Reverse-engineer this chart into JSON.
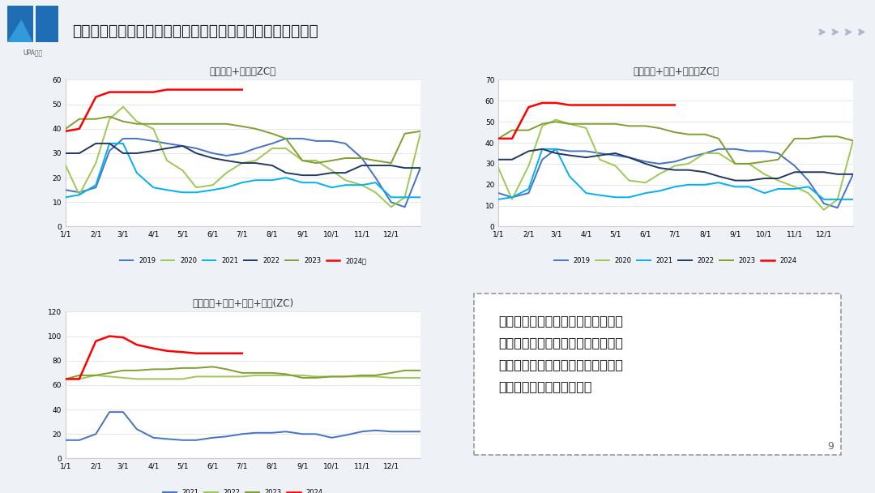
{
  "title": "库存：整体高位小幅下降，未来几周华南及上游料仍去库为主",
  "page_num": "9",
  "bg_color": "#eef2f7",
  "header_bg": "#ffffff",
  "header_bar_color": "#1f6eb5",
  "chart1_title": "库存华东+华南（ZC）",
  "chart2_title": "库存华东+华南+西南（ZC）",
  "chart3_title": "库存华东+华南+西南+上游(ZC)",
  "comment_text": "近期华南库存表现为下降，和洪水导\n致装卸困难有关。未来几周大装置集\n中检修且渤化意外停车，料华南库存\n及上游库存仍以下降为主。",
  "x_labels": [
    "1/1",
    "2/1",
    "3/1",
    "4/1",
    "5/1",
    "6/1",
    "7/1",
    "8/1",
    "9/1",
    "10/1",
    "11/1",
    "12/1"
  ],
  "colors": {
    "2019": "#4472c4",
    "2020": "#9dc853",
    "2021": "#00b0f0",
    "2022": "#1f3864",
    "2023": "#7f9f30",
    "2024": "#ff0000"
  },
  "chart1": {
    "2019_x": [
      1,
      15,
      32,
      46,
      60,
      74,
      91,
      105,
      121,
      135,
      152,
      166,
      182,
      196,
      213,
      227,
      244,
      258,
      274,
      288,
      305,
      319,
      335,
      349,
      365
    ],
    "2019_y": [
      15,
      14,
      16,
      31,
      36,
      36,
      35,
      34,
      33,
      32,
      30,
      29,
      30,
      32,
      34,
      36,
      36,
      35,
      35,
      34,
      28,
      20,
      10,
      8,
      24
    ],
    "2020_x": [
      1,
      15,
      32,
      46,
      60,
      74,
      91,
      105,
      121,
      135,
      152,
      166,
      182,
      196,
      213,
      227,
      244,
      258,
      274,
      288,
      305,
      319,
      335,
      349,
      365
    ],
    "2020_y": [
      25,
      13,
      26,
      44,
      49,
      43,
      40,
      27,
      23,
      16,
      17,
      22,
      26,
      27,
      32,
      32,
      27,
      27,
      23,
      19,
      17,
      14,
      8,
      12,
      38
    ],
    "2021_x": [
      1,
      15,
      32,
      46,
      60,
      74,
      91,
      105,
      121,
      135,
      152,
      166,
      182,
      196,
      213,
      227,
      244,
      258,
      274,
      288,
      305,
      319,
      335,
      349,
      365
    ],
    "2021_y": [
      12,
      13,
      17,
      34,
      34,
      22,
      16,
      15,
      14,
      14,
      15,
      16,
      18,
      19,
      19,
      20,
      18,
      18,
      16,
      17,
      17,
      18,
      12,
      12,
      12
    ],
    "2022_x": [
      1,
      15,
      32,
      46,
      60,
      74,
      91,
      105,
      121,
      135,
      152,
      166,
      182,
      196,
      213,
      227,
      244,
      258,
      274,
      288,
      305,
      319,
      335,
      349,
      365
    ],
    "2022_y": [
      30,
      30,
      34,
      34,
      30,
      30,
      31,
      32,
      33,
      30,
      28,
      27,
      26,
      26,
      25,
      22,
      21,
      21,
      22,
      22,
      25,
      25,
      25,
      24,
      24
    ],
    "2023_x": [
      1,
      15,
      32,
      46,
      60,
      74,
      91,
      105,
      121,
      135,
      152,
      166,
      182,
      196,
      213,
      227,
      244,
      258,
      274,
      288,
      305,
      319,
      335,
      349,
      365
    ],
    "2023_y": [
      40,
      44,
      44,
      45,
      43,
      42,
      42,
      42,
      42,
      42,
      42,
      42,
      41,
      40,
      38,
      36,
      27,
      26,
      27,
      28,
      28,
      27,
      26,
      38,
      39
    ],
    "2024_x": [
      1,
      15,
      32,
      46,
      60,
      74,
      91,
      105,
      121,
      135,
      152,
      166,
      182
    ],
    "2024_y": [
      39,
      40,
      53,
      55,
      55,
      55,
      55,
      56,
      56,
      56,
      56,
      56,
      56
    ]
  },
  "chart2": {
    "2019_x": [
      1,
      15,
      32,
      46,
      60,
      74,
      91,
      105,
      121,
      135,
      152,
      166,
      182,
      196,
      213,
      227,
      244,
      258,
      274,
      288,
      305,
      319,
      335,
      349,
      365
    ],
    "2019_y": [
      16,
      14,
      16,
      32,
      37,
      36,
      36,
      35,
      34,
      33,
      31,
      30,
      31,
      33,
      35,
      37,
      37,
      36,
      36,
      35,
      29,
      22,
      11,
      9,
      25
    ],
    "2020_x": [
      1,
      15,
      32,
      46,
      60,
      74,
      91,
      105,
      121,
      135,
      152,
      166,
      182,
      196,
      213,
      227,
      244,
      258,
      274,
      288,
      305,
      319,
      335,
      349,
      365
    ],
    "2020_y": [
      28,
      13,
      29,
      48,
      51,
      49,
      47,
      32,
      29,
      22,
      21,
      25,
      29,
      30,
      35,
      35,
      30,
      30,
      25,
      22,
      19,
      16,
      8,
      13,
      41
    ],
    "2021_x": [
      1,
      15,
      32,
      46,
      60,
      74,
      91,
      105,
      121,
      135,
      152,
      166,
      182,
      196,
      213,
      227,
      244,
      258,
      274,
      288,
      305,
      319,
      335,
      349,
      365
    ],
    "2021_y": [
      13,
      14,
      18,
      37,
      37,
      24,
      16,
      15,
      14,
      14,
      16,
      17,
      19,
      20,
      20,
      21,
      19,
      19,
      16,
      18,
      18,
      19,
      13,
      13,
      13
    ],
    "2022_x": [
      1,
      15,
      32,
      46,
      60,
      74,
      91,
      105,
      121,
      135,
      152,
      166,
      182,
      196,
      213,
      227,
      244,
      258,
      274,
      288,
      305,
      319,
      335,
      349,
      365
    ],
    "2022_y": [
      32,
      32,
      36,
      37,
      35,
      34,
      33,
      34,
      35,
      33,
      30,
      28,
      27,
      27,
      26,
      24,
      22,
      22,
      23,
      23,
      26,
      26,
      26,
      25,
      25
    ],
    "2023_x": [
      1,
      15,
      32,
      46,
      60,
      74,
      91,
      105,
      121,
      135,
      152,
      166,
      182,
      196,
      213,
      227,
      244,
      258,
      274,
      288,
      305,
      319,
      335,
      349,
      365
    ],
    "2023_y": [
      42,
      46,
      46,
      49,
      50,
      49,
      49,
      49,
      49,
      48,
      48,
      47,
      45,
      44,
      44,
      42,
      30,
      30,
      31,
      32,
      42,
      42,
      43,
      43,
      41
    ],
    "2024_x": [
      1,
      15,
      32,
      46,
      60,
      74,
      91,
      105,
      121,
      135,
      152,
      166,
      182
    ],
    "2024_y": [
      42,
      42,
      57,
      59,
      59,
      58,
      58,
      58,
      58,
      58,
      58,
      58,
      58
    ]
  },
  "chart3": {
    "2021_x": [
      1,
      15,
      32,
      46,
      60,
      74,
      91,
      105,
      121,
      135,
      152,
      166,
      182,
      196,
      213,
      227,
      244,
      258,
      274,
      288,
      305,
      319,
      335,
      349,
      365
    ],
    "2021_y": [
      15,
      15,
      20,
      38,
      38,
      24,
      17,
      16,
      15,
      15,
      17,
      18,
      20,
      21,
      21,
      22,
      20,
      20,
      17,
      19,
      22,
      23,
      22,
      22,
      22
    ],
    "2022_x": [
      1,
      15,
      32,
      46,
      60,
      74,
      91,
      105,
      121,
      135,
      152,
      166,
      182,
      196,
      213,
      227,
      244,
      258,
      274,
      288,
      305,
      319,
      335,
      349,
      365
    ],
    "2022_y": [
      65,
      65,
      68,
      67,
      66,
      65,
      65,
      65,
      65,
      67,
      67,
      67,
      67,
      68,
      68,
      68,
      68,
      67,
      67,
      67,
      67,
      67,
      66,
      66,
      66
    ],
    "2023_x": [
      1,
      15,
      32,
      46,
      60,
      74,
      91,
      105,
      121,
      135,
      152,
      166,
      182,
      196,
      213,
      227,
      244,
      258,
      274,
      288,
      305,
      319,
      335,
      349,
      365
    ],
    "2023_y": [
      65,
      68,
      68,
      70,
      72,
      72,
      73,
      73,
      74,
      74,
      75,
      73,
      70,
      70,
      70,
      69,
      66,
      66,
      67,
      67,
      68,
      68,
      70,
      72,
      72
    ],
    "2024_x": [
      1,
      15,
      32,
      46,
      60,
      74,
      91,
      105,
      121,
      135,
      152,
      166,
      182
    ],
    "2024_y": [
      65,
      65,
      96,
      100,
      99,
      93,
      90,
      88,
      87,
      86,
      86,
      86,
      86
    ]
  }
}
